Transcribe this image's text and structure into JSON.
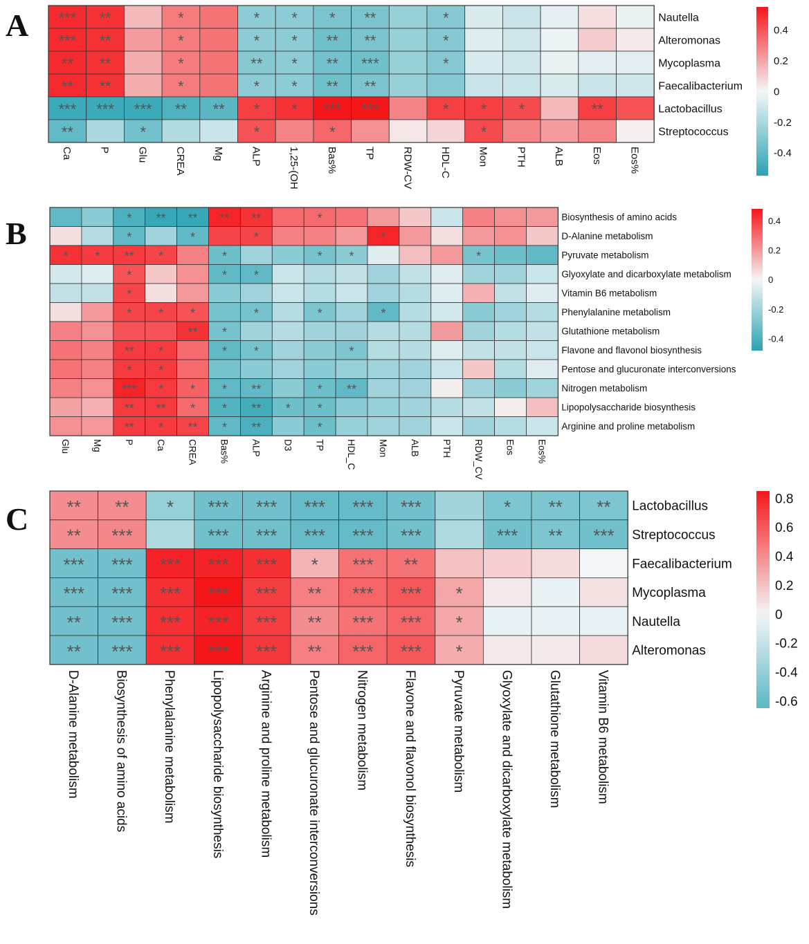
{
  "colors": {
    "negative": "#2aa3b3",
    "neutral": "#f4f6f7",
    "positive": "#f5161a",
    "grid": "#333333",
    "star": "#555555",
    "text": "#111111"
  },
  "chart_data": [
    {
      "type": "heatmap",
      "panel": "A",
      "rows": [
        "Nautella",
        "Alteromonas",
        "Mycoplasma",
        "Faecalibacterium",
        "Lactobacillus",
        "Streptococcus"
      ],
      "columns": [
        "Ca",
        "P",
        "Glu",
        "CREA",
        "Mg",
        "ALP",
        "1,25-(OH",
        "Bas%",
        "TP",
        "RDW-CV",
        "HDL-C",
        "Mon",
        "PTH",
        "ALB",
        "Eos",
        "Eos%"
      ],
      "values": [
        [
          0.5,
          0.48,
          0.15,
          0.3,
          0.32,
          -0.28,
          -0.28,
          -0.33,
          -0.33,
          -0.25,
          -0.3,
          -0.07,
          -0.12,
          -0.04,
          0.06,
          -0.03
        ],
        [
          0.5,
          0.48,
          0.22,
          0.3,
          0.32,
          -0.28,
          -0.28,
          -0.36,
          -0.33,
          -0.25,
          -0.3,
          -0.06,
          -0.1,
          -0.02,
          0.1,
          0.03
        ],
        [
          0.5,
          0.48,
          0.18,
          0.3,
          0.32,
          -0.3,
          -0.28,
          -0.35,
          -0.36,
          -0.25,
          -0.3,
          -0.08,
          -0.1,
          -0.03,
          -0.05,
          -0.05
        ],
        [
          0.5,
          0.48,
          0.18,
          0.3,
          0.32,
          -0.28,
          -0.28,
          -0.36,
          -0.33,
          -0.25,
          -0.3,
          -0.12,
          -0.12,
          -0.07,
          -0.12,
          -0.1
        ],
        [
          -0.5,
          -0.5,
          -0.5,
          -0.45,
          -0.42,
          0.45,
          0.48,
          0.55,
          0.58,
          0.28,
          0.45,
          0.45,
          0.42,
          0.15,
          0.45,
          0.4
        ],
        [
          -0.4,
          -0.2,
          -0.35,
          -0.18,
          -0.12,
          0.4,
          0.28,
          0.35,
          0.25,
          0.04,
          0.08,
          0.42,
          0.28,
          0.22,
          0.28,
          0.02
        ]
      ],
      "stars": [
        [
          "***",
          "**",
          "",
          "*",
          "",
          "*",
          "*",
          "*",
          "**",
          "",
          "*",
          "",
          "",
          "",
          "",
          ""
        ],
        [
          "***",
          "**",
          "",
          "*",
          "",
          "*",
          "*",
          "**",
          "**",
          "",
          "*",
          "",
          "",
          "",
          "",
          ""
        ],
        [
          "**",
          "**",
          "",
          "*",
          "",
          "**",
          "*",
          "**",
          "***",
          "",
          "*",
          "",
          "",
          "",
          "",
          ""
        ],
        [
          "**",
          "**",
          "",
          "*",
          "",
          "*",
          "*",
          "**",
          "**",
          "",
          "",
          "",
          "",
          "",
          "",
          ""
        ],
        [
          "***",
          "***",
          "***",
          "**",
          "**",
          "*",
          "*",
          "***",
          "***",
          "",
          "*",
          "*",
          "*",
          "",
          "**",
          ""
        ],
        [
          "**",
          "",
          "*",
          "",
          "",
          "*",
          "",
          "*",
          "",
          "",
          "",
          "*",
          "",
          "",
          "",
          ""
        ]
      ],
      "colorbar": {
        "range": [
          -0.55,
          0.55
        ],
        "ticks": [
          "0.4",
          "0.2",
          "0",
          "-0.2",
          "-0.4"
        ],
        "tick_values": [
          0.4,
          0.2,
          0,
          -0.2,
          -0.4
        ]
      }
    },
    {
      "type": "heatmap",
      "panel": "B",
      "rows": [
        "Biosynthesis of amino acids",
        "D-Alanine metabolism",
        "Pyruvate metabolism",
        "Glyoxylate and dicarboxylate metabolism",
        "Vitamin B6 metabolism",
        "Phenylalanine metabolism",
        "Glutathione metabolism",
        "Flavone and flavonol biosynthesis",
        "Pentose and glucuronate interconversions",
        "Nitrogen metabolism",
        "Lipopolysaccharide biosynthesis",
        "Arginine and proline metabolism"
      ],
      "columns": [
        "Glu",
        "Mg",
        "P",
        "Ca",
        "CREA",
        "Bas%",
        "ALP",
        "D3",
        "TP",
        "HDL_C",
        "Mon",
        "ALB",
        "PTH",
        "RDW_CV",
        "Eos",
        "Eos%"
      ],
      "values": [
        [
          -0.35,
          -0.25,
          -0.4,
          -0.45,
          -0.45,
          0.45,
          0.42,
          0.3,
          0.3,
          0.28,
          0.2,
          0.1,
          -0.1,
          0.25,
          0.22,
          0.2
        ],
        [
          0.05,
          -0.15,
          -0.35,
          -0.2,
          -0.35,
          0.38,
          0.38,
          0.25,
          0.25,
          0.2,
          0.45,
          0.2,
          0.05,
          0.2,
          0.22,
          0.1
        ],
        [
          0.42,
          0.4,
          0.4,
          0.38,
          0.25,
          -0.32,
          -0.2,
          -0.25,
          -0.3,
          -0.25,
          -0.05,
          0.12,
          0.2,
          -0.3,
          -0.32,
          -0.35
        ],
        [
          -0.08,
          -0.05,
          0.35,
          0.1,
          0.22,
          -0.35,
          -0.35,
          -0.1,
          -0.15,
          -0.12,
          -0.2,
          -0.12,
          -0.05,
          -0.2,
          -0.2,
          -0.1
        ],
        [
          -0.12,
          -0.12,
          0.38,
          0.05,
          0.2,
          -0.25,
          -0.2,
          -0.1,
          -0.15,
          -0.1,
          -0.2,
          -0.15,
          -0.05,
          0.15,
          -0.12,
          -0.05
        ],
        [
          0.05,
          0.2,
          0.38,
          0.38,
          0.35,
          -0.3,
          -0.3,
          -0.15,
          -0.28,
          -0.2,
          -0.35,
          -0.15,
          -0.08,
          -0.25,
          -0.2,
          -0.15
        ],
        [
          0.25,
          0.22,
          0.35,
          0.35,
          0.42,
          -0.3,
          -0.2,
          -0.15,
          -0.2,
          -0.2,
          -0.15,
          -0.15,
          0.2,
          -0.2,
          -0.15,
          -0.12
        ],
        [
          0.28,
          0.25,
          0.4,
          0.4,
          0.3,
          -0.35,
          -0.3,
          -0.2,
          -0.25,
          -0.28,
          -0.15,
          -0.15,
          -0.05,
          -0.12,
          -0.12,
          -0.1
        ],
        [
          0.28,
          0.25,
          0.4,
          0.4,
          0.3,
          -0.3,
          -0.25,
          -0.2,
          -0.25,
          -0.22,
          -0.2,
          -0.2,
          -0.1,
          0.1,
          -0.15,
          -0.05
        ],
        [
          0.25,
          0.22,
          0.45,
          0.4,
          0.32,
          -0.35,
          -0.35,
          -0.25,
          -0.32,
          -0.35,
          -0.2,
          -0.2,
          0.02,
          -0.2,
          -0.25,
          -0.2
        ],
        [
          0.18,
          0.15,
          0.4,
          0.4,
          0.3,
          -0.38,
          -0.42,
          -0.32,
          -0.32,
          -0.25,
          -0.22,
          -0.2,
          -0.15,
          -0.12,
          0.02,
          0.12
        ],
        [
          0.22,
          0.2,
          0.4,
          0.4,
          0.38,
          -0.35,
          -0.4,
          -0.25,
          -0.32,
          -0.22,
          -0.2,
          -0.2,
          -0.1,
          -0.2,
          -0.15,
          -0.1
        ]
      ],
      "stars": [
        [
          "",
          "",
          "*",
          "**",
          "**",
          "**",
          "**",
          "",
          "*",
          "",
          "",
          "",
          "",
          "",
          "",
          ""
        ],
        [
          "",
          "",
          "*",
          "",
          "*",
          "",
          "*",
          "",
          "",
          "",
          "*",
          "",
          "",
          "",
          "",
          ""
        ],
        [
          "*",
          "*",
          "**",
          "*",
          "",
          "*",
          "",
          "",
          "*",
          "*",
          "",
          "",
          "",
          "*",
          "",
          ""
        ],
        [
          "",
          "",
          "*",
          "",
          "",
          "*",
          "*",
          "",
          "",
          "",
          "",
          "",
          "",
          "",
          "",
          ""
        ],
        [
          "",
          "",
          "*",
          "",
          "",
          "",
          "",
          "",
          "",
          "",
          "",
          "",
          "",
          "",
          "",
          ""
        ],
        [
          "",
          "",
          "*",
          "*",
          "*",
          "",
          "*",
          "",
          "*",
          "",
          "*",
          "",
          "",
          "",
          "",
          ""
        ],
        [
          "",
          "",
          "",
          "",
          "**",
          "*",
          "",
          "",
          "",
          "",
          "",
          "",
          "",
          "",
          "",
          ""
        ],
        [
          "",
          "",
          "**",
          "*",
          "",
          "*",
          "*",
          "",
          "",
          "*",
          "",
          "",
          "",
          "",
          "",
          ""
        ],
        [
          "",
          "",
          "*",
          "*",
          "",
          "",
          "",
          "",
          "",
          "",
          "",
          "",
          "",
          "",
          "",
          ""
        ],
        [
          "",
          "",
          "***",
          "*",
          "*",
          "*",
          "**",
          "",
          "*",
          "**",
          "",
          "",
          "",
          "",
          "",
          ""
        ],
        [
          "",
          "",
          "**",
          "**",
          "*",
          "*",
          "**",
          "*",
          "*",
          "",
          "",
          "",
          "",
          "",
          "",
          ""
        ],
        [
          "",
          "",
          "**",
          "*",
          "**",
          "*",
          "**",
          "",
          "*",
          "",
          "",
          "",
          "",
          "",
          "",
          ""
        ]
      ],
      "colorbar": {
        "range": [
          -0.48,
          0.48
        ],
        "ticks": [
          "0.4",
          "0.2",
          "0",
          "-0.2",
          "-0.4"
        ],
        "tick_values": [
          0.4,
          0.2,
          0,
          -0.2,
          -0.4
        ]
      }
    },
    {
      "type": "heatmap",
      "panel": "C",
      "rows": [
        "Lactobacillus",
        "Streptococcus",
        "Faecalibacterium",
        "Mycoplasma",
        "Nautella",
        "Alteromonas"
      ],
      "columns": [
        "D-Alanine metabolism",
        "Biosynthesis of amino acids",
        "Phenylalanine metabolism",
        "Lipopolysaccharide biosynthesis",
        "Arginine and proline metabolism",
        "Pentose and glucuronate interconversions",
        "Nitrogen metabolism",
        "Flavone and flavonol biosynthesis",
        "Pyruvate metabolism",
        "Glyoxylate and dicarboxylate metabolism",
        "Glutathione metabolism",
        "Vitamin B6 metabolism"
      ],
      "values": [
        [
          0.4,
          0.4,
          -0.4,
          -0.55,
          -0.55,
          -0.6,
          -0.6,
          -0.55,
          -0.35,
          -0.5,
          -0.5,
          -0.5
        ],
        [
          0.4,
          0.42,
          -0.3,
          -0.55,
          -0.55,
          -0.6,
          -0.6,
          -0.55,
          -0.3,
          -0.55,
          -0.5,
          -0.55
        ],
        [
          -0.55,
          -0.55,
          0.8,
          0.8,
          0.75,
          0.25,
          0.5,
          0.5,
          0.2,
          0.15,
          0.1,
          0.0
        ],
        [
          -0.55,
          -0.55,
          0.75,
          0.85,
          0.7,
          0.45,
          0.55,
          0.6,
          0.3,
          0.05,
          -0.05,
          0.08
        ],
        [
          -0.55,
          -0.55,
          0.75,
          0.8,
          0.7,
          0.4,
          0.5,
          0.55,
          0.3,
          -0.05,
          -0.05,
          -0.05
        ],
        [
          -0.55,
          -0.55,
          0.75,
          0.85,
          0.72,
          0.45,
          0.55,
          0.6,
          0.28,
          0.05,
          0.05,
          0.1
        ]
      ],
      "stars": [
        [
          "**",
          "**",
          "*",
          "***",
          "***",
          "***",
          "***",
          "***",
          "",
          "*",
          "**",
          "**"
        ],
        [
          "**",
          "***",
          "",
          "***",
          "***",
          "***",
          "***",
          "***",
          "",
          "***",
          "**",
          "***"
        ],
        [
          "***",
          "***",
          "***",
          "***",
          "***",
          "*",
          "***",
          "**",
          "",
          "",
          "",
          ""
        ],
        [
          "***",
          "***",
          "***",
          "***",
          "***",
          "**",
          "***",
          "***",
          "*",
          "",
          "",
          ""
        ],
        [
          "**",
          "***",
          "***",
          "***",
          "***",
          "**",
          "***",
          "***",
          "*",
          "",
          "",
          ""
        ],
        [
          "**",
          "***",
          "***",
          "***",
          "***",
          "**",
          "***",
          "***",
          "*",
          "",
          "",
          ""
        ]
      ],
      "colorbar": {
        "range": [
          -0.65,
          0.85
        ],
        "ticks": [
          "0.8",
          "0.6",
          "0.4",
          "0.2",
          "0",
          "-0.2",
          "-0.4",
          "-0.6"
        ],
        "tick_values": [
          0.8,
          0.6,
          0.4,
          0.2,
          0,
          -0.2,
          -0.4,
          -0.6
        ]
      }
    }
  ]
}
